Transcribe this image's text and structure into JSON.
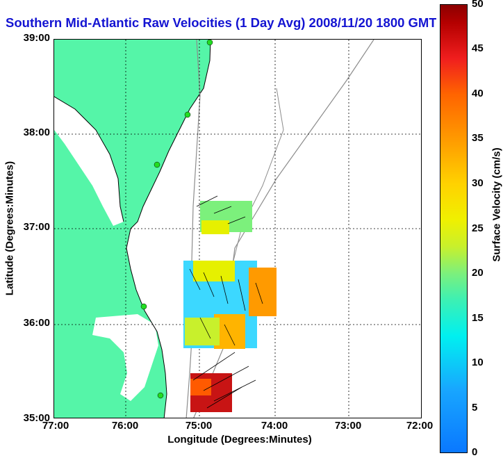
{
  "title": "Southern Mid-Atlantic Raw Velocities (1 Day Avg) 2008/11/20 1800 GMT",
  "x_axis": {
    "label": "Longitude (Degrees:Minutes)",
    "ticks": [
      "77:00",
      "76:00",
      "75:00",
      "74:00",
      "73:00",
      "72:00"
    ]
  },
  "y_axis": {
    "label": "Latitude (Degrees:Minutes)",
    "ticks": [
      "39:00",
      "38:00",
      "37:00",
      "36:00",
      "35:00"
    ]
  },
  "colorbar": {
    "label": "Surface Velocity (cm/s)",
    "ticks": [
      "50",
      "45",
      "40",
      "35",
      "30",
      "25",
      "20",
      "15",
      "10",
      "5",
      "0"
    ]
  },
  "colors": {
    "land": "#55f5a8",
    "title": "#1414d2",
    "isobath": "#8c8c8c",
    "stations": "#22dd22"
  },
  "chart_data": {
    "type": "heatmap",
    "title": "Southern Mid-Atlantic Raw Velocities (1 Day Avg) 2008/11/20 1800 GMT",
    "xlabel": "Longitude (Degrees:Minutes)",
    "ylabel": "Latitude (Degrees:Minutes)",
    "xlim": [
      -77,
      -72
    ],
    "ylim": [
      35,
      39
    ],
    "colorbar_range": [
      0,
      50
    ],
    "colorbar_label": "Surface Velocity (cm/s)",
    "regions": [
      {
        "lat": 37.1,
        "lon": -74.75,
        "speed": 24
      },
      {
        "lat": 36.3,
        "lon": -74.75,
        "speed": 12
      },
      {
        "lat": 36.45,
        "lon": -74.2,
        "speed": 38
      },
      {
        "lat": 35.9,
        "lon": -74.8,
        "speed": 33
      },
      {
        "lat": 35.25,
        "lon": -74.85,
        "speed": 44
      }
    ]
  }
}
